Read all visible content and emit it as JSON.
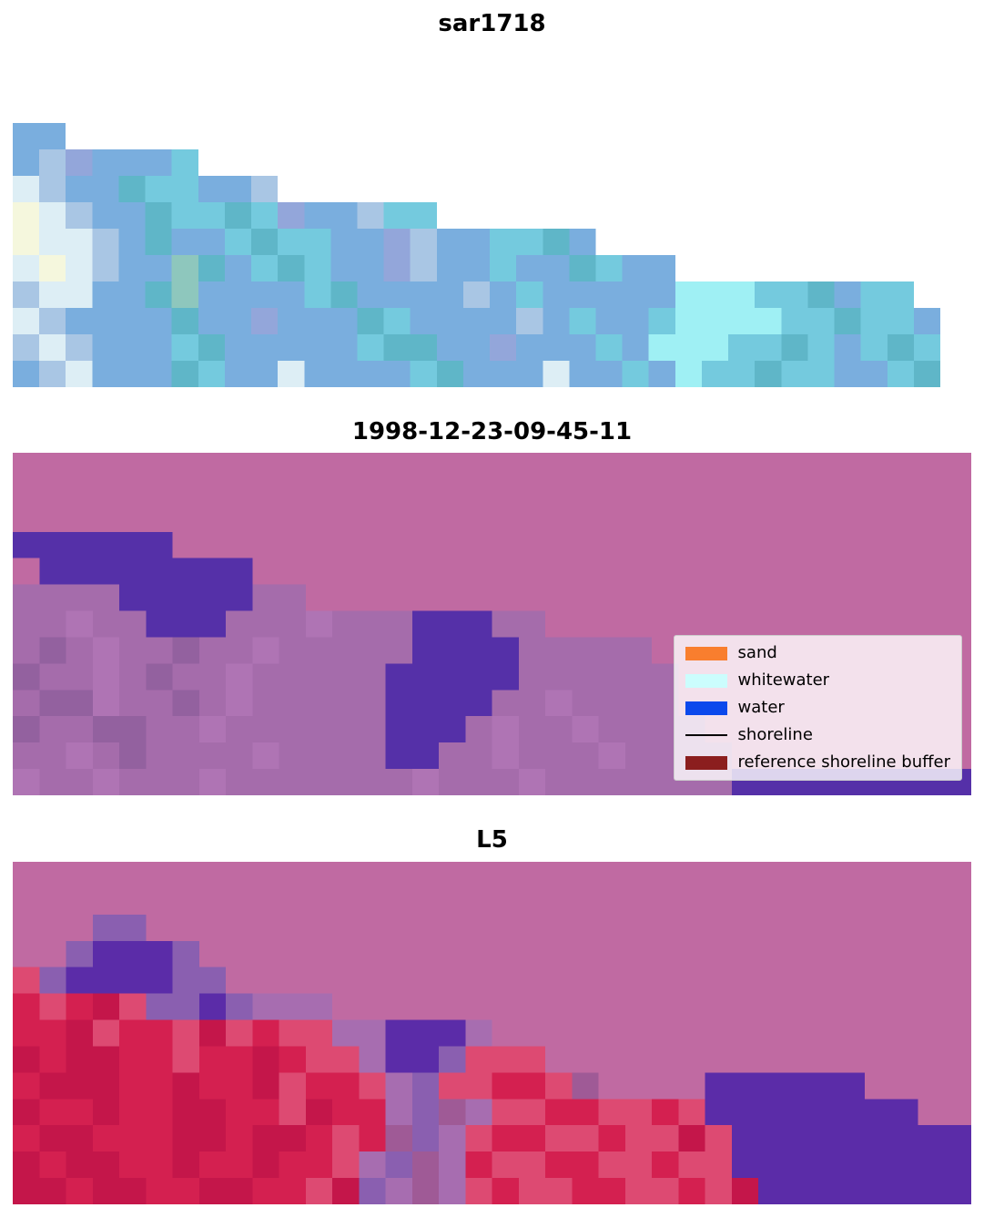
{
  "figure": {
    "background": "#ffffff"
  },
  "chart_data": {
    "type": "heatmap",
    "description": "Three stacked satellite image panels rendered as coarse pixel grids",
    "panels": [
      {
        "title": "sar1718",
        "grid": {
          "cols": 35,
          "palette": {
            "_": "#ffffff",
            "b": "#7aaede",
            "l": "#a9c6e4",
            "p": "#93a6da",
            "c": "#74cade",
            "C": "#9ff0f4",
            "t": "#5fb6c8",
            "w": "#ddeef5",
            "y": "#f5f7dd",
            "g": "#8ec7bd"
          },
          "rows_data": [
            "bb_________________________________",
            "blpbbbc____________________________",
            "wlbbtccbbl_________________________",
            "ywlbbtcctcpbblcc___________________",
            "ywwlbtbbctccbbplbbcctb_____________",
            "wywlbbgtbctcbbplbbcbbtcbb__________",
            "lwwbbtgbbbbctbbbblbcbbbbbCCCcctbcc_",
            "wlbbbbtbbpbbbtcbbbblbcbbcCCCCcctccb",
            "lwlbbbctbbbbbcttbbpbbbcbCCCcctcbctc",
            "blwbbbtcbbwbbbbctbbbwbbcbCcctccbbct"
          ]
        }
      },
      {
        "title": "1998-12-23-09-45-11",
        "grid": {
          "cols": 36,
          "palette": {
            "P": "#c06aa2",
            "D": "#5530a8",
            "m": "#a56cab",
            "M": "#93619f",
            "v": "#af74b4"
          },
          "rows_data": [
            "PPPPPPPPPPPPPPPPPPPPPPPPPPPPPPPPPPPP",
            "PPPPPPPPPPPPPPPPPPPPPPPPPPPPPPPPPPPP",
            "PPPPPPPPPPPPPPPPPPPPPPPPPPPPPPPPPPPP",
            "DDDDDDPPPPPPPPPPPPPPPPPPPPPPPPPPPPPP",
            "PDDDDDDDDPPPPPPPPPPPPPPPPPPPPPPPPPPP",
            "mmmmDDDDDmmPPPPPPPPPPPPPPPPPPPPPPPPP",
            "mmvmmDDDmmmvmmmDDDmmPPPPPPPPPPPPPPPP",
            "mMmvmmMmmvmmmmmDDDDmmmmmPPPPPPPPPPPP",
            "MmmvmMmmvmmmmmDDDDDmmmmmmPPPPPPPPPPP",
            "mMMvmmMmvmmmmmDDDDmmvmmmmPPPPPPPPPPP",
            "MmmMMmmvmmmmmmDDDmvmmvmmmmPPPPPPPPPP",
            "mmvmMmmmmvmmmmDDmmvmmmvmmmmPPPPPPPPP",
            "vmmvmmmvmmmmmmmvmmmvmmmmmmmDDDDDDDDD"
          ]
        }
      },
      {
        "title": "L5",
        "grid": {
          "cols": 36,
          "palette": {
            "P": "#c06aa2",
            "D": "#5b2ca8",
            "v": "#8a5fb0",
            "m": "#a76db0",
            "u": "#9f5a96",
            "R": "#d42050",
            "E": "#c4164a",
            "s": "#dd4a72"
          },
          "rows_data": [
            "PPPPPPPPPPPPPPPPPPPPPPPPPPPPPPPPPPPP",
            "PPPPPPPPPPPPPPPPPPPPPPPPPPPPPPPPPPPP",
            "PPPvvPPPPPPPPPPPPPPPPPPPPPPPPPPPPPPP",
            "PPvDDDvPPPPPPPPPPPPPPPPPPPPPPPPPPPPP",
            "svDDDDvvPPPPPPPPPPPPPPPPPPPPPPPPPPPP",
            "RsREsvvDvmmmPPPPPPPPPPPPPPPPPPPPPPPP",
            "RREsRRsEsRssmmDDDmPPPPPPPPPPPPPPPPPP",
            "EREERRsRRERssmDDvsssPPPPPPPPPPPPPPPP",
            "REEERRERREsRRsmvssRRsuPPPPDDDDDDPPPP",
            "ERRERREERRsERRmvumssRRssRsDDDDDDDDPP",
            "REERRREEREERsRuvmsRRssRssEsDDDDDDDDD",
            "EREERRERRERRsmvumRssRRssRssDDDDDDDDD",
            "EEREERREERRsEvmumsRssRRssRsEDDDDDDDD"
          ]
        }
      }
    ],
    "legend": {
      "background": "rgba(255,255,255,0.8)",
      "entries": [
        {
          "label": "sand",
          "color": "#f97e2e",
          "type": "patch"
        },
        {
          "label": "whitewater",
          "color": "#cbfdfd",
          "type": "patch"
        },
        {
          "label": "water",
          "color": "#0b49ec",
          "type": "patch"
        },
        {
          "label": "shoreline",
          "color": "#000000",
          "type": "line"
        },
        {
          "label": "reference shoreline buffer",
          "color": "#8b1e1e",
          "type": "patch"
        }
      ]
    }
  }
}
